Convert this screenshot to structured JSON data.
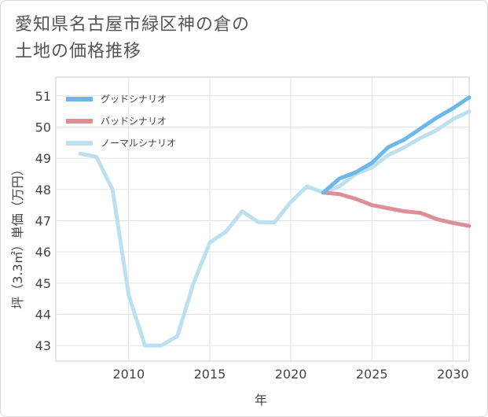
{
  "title_line1": "愛知県名古屋市緑区神の倉の",
  "title_line2": "土地の価格推移",
  "chart_data": {
    "type": "line",
    "title": "愛知県名古屋市緑区神の倉の土地の価格推移",
    "xlabel": "年",
    "ylabel": "坪（3.3㎡）単価（万円）",
    "xlim": [
      2005.5,
      2031
    ],
    "ylim": [
      42.5,
      51.6
    ],
    "xticks": [
      2010,
      2015,
      2020,
      2025,
      2030
    ],
    "yticks": [
      43,
      44,
      45,
      46,
      47,
      48,
      49,
      50,
      51
    ],
    "legend_position": "top-left",
    "series": [
      {
        "name": "グッドシナリオ",
        "color": "#6cb8ea",
        "x": [
          2022,
          2023,
          2024,
          2025,
          2026,
          2027,
          2028,
          2029,
          2030,
          2031
        ],
        "values": [
          47.9,
          48.35,
          48.55,
          48.85,
          49.35,
          49.6,
          49.95,
          50.3,
          50.6,
          50.95
        ]
      },
      {
        "name": "バッドシナリオ",
        "color": "#de8f96",
        "x": [
          2022,
          2023,
          2024,
          2025,
          2026,
          2027,
          2028,
          2029,
          2030,
          2031
        ],
        "values": [
          47.9,
          47.85,
          47.7,
          47.5,
          47.4,
          47.3,
          47.25,
          47.05,
          46.93,
          46.83
        ]
      },
      {
        "name": "ノーマルシナリオ",
        "color": "#bde0ef",
        "x": [
          2007,
          2008,
          2009,
          2010,
          2011,
          2012,
          2013,
          2014,
          2015,
          2016,
          2017,
          2018,
          2019,
          2020,
          2021,
          2022,
          2023,
          2024,
          2025,
          2026,
          2027,
          2028,
          2029,
          2030,
          2031
        ],
        "values": [
          49.15,
          49.05,
          48.0,
          44.6,
          43.0,
          43.0,
          43.3,
          45.0,
          46.3,
          46.65,
          47.3,
          46.95,
          46.95,
          47.6,
          48.1,
          47.9,
          48.1,
          48.5,
          48.7,
          49.1,
          49.35,
          49.65,
          49.9,
          50.25,
          50.5
        ]
      }
    ]
  }
}
